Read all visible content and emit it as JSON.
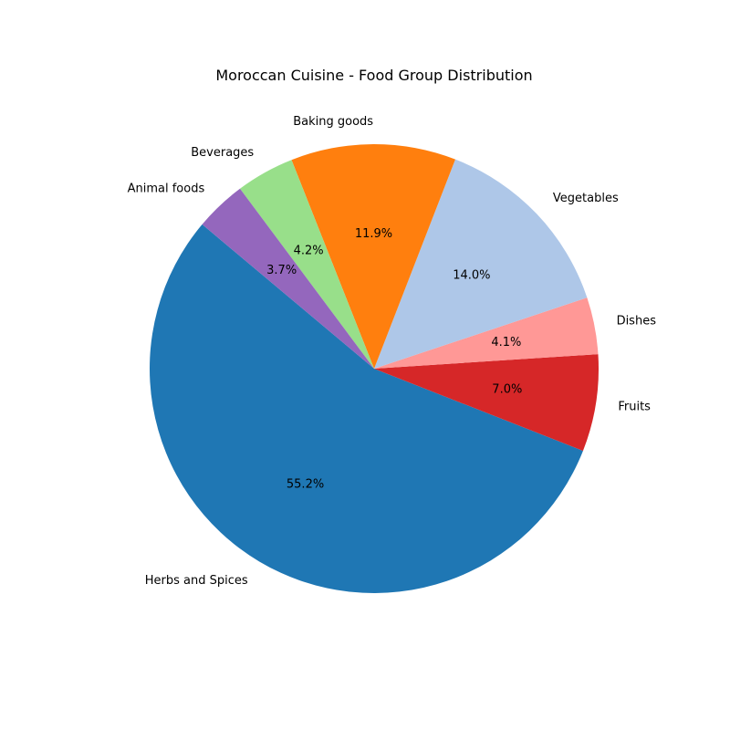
{
  "chart_data": {
    "type": "pie",
    "title": "Moroccan Cuisine - Food Group Distribution",
    "start_angle_deg": 140,
    "direction": "counterclockwise",
    "slices": [
      {
        "label": "Herbs and Spices",
        "value": 55.2,
        "pct_label": "55.2%",
        "color": "#1f77b4"
      },
      {
        "label": "Fruits",
        "value": 7.0,
        "pct_label": "7.0%",
        "color": "#d62728"
      },
      {
        "label": "Dishes",
        "value": 4.1,
        "pct_label": "4.1%",
        "color": "#ff9896"
      },
      {
        "label": "Vegetables",
        "value": 14.0,
        "pct_label": "14.0%",
        "color": "#aec7e8"
      },
      {
        "label": "Baking goods",
        "value": 11.9,
        "pct_label": "11.9%",
        "color": "#ff7f0e"
      },
      {
        "label": "Beverages",
        "value": 4.2,
        "pct_label": "4.2%",
        "color": "#98df8a"
      },
      {
        "label": "Animal foods",
        "value": 3.7,
        "pct_label": "3.7%",
        "color": "#9467bd"
      }
    ]
  }
}
